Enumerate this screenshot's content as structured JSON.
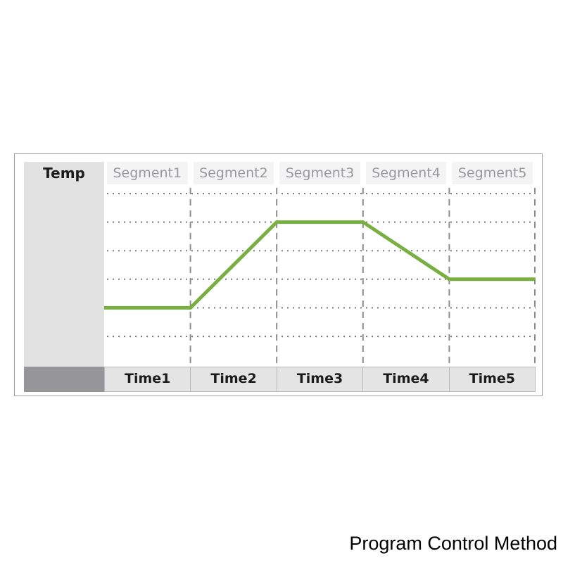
{
  "caption": "Program Control Method",
  "colors": {
    "line_green": "#77b040",
    "frame_border": "#9d9d9d",
    "temp_bg": "#e2e2e3",
    "corner_bg": "#95959a",
    "segment_bg": "#f4f4f5",
    "segment_text": "#98989d",
    "time_bg": "#e4e4e5",
    "time_border": "#b8b8b8",
    "dark_text": "#1b1b1b",
    "grid_dot": "#7a7a7a",
    "dash_line": "#8c8c8c"
  },
  "chart_data": {
    "type": "line",
    "title": "Program Control Method",
    "y_axis_label": "Temp",
    "x_categories": [
      "Segment1",
      "Segment2",
      "Segment3",
      "Segment4",
      "Segment5"
    ],
    "x_time_labels": [
      "Time1",
      "Time2",
      "Time3",
      "Time4",
      "Time5"
    ],
    "y_gridlines": 6,
    "y_tick_labels_shown": false,
    "grid": "dotted horizontal lines, dashed vertical segment boundaries",
    "legend": "none",
    "series": [
      {
        "name": "temperature profile",
        "color": "#77b040",
        "points_x_boundary": [
          0,
          1,
          2,
          3,
          4,
          5
        ],
        "points_level": [
          2,
          2,
          5,
          5,
          3,
          3
        ],
        "segment_actions": [
          "hold low",
          "ramp up",
          "hold high",
          "ramp down",
          "hold mid"
        ]
      }
    ],
    "level_scale_note": "level = dotted gridline index counted from bottom (1-6); no numeric temperature values are shown in the figure"
  }
}
